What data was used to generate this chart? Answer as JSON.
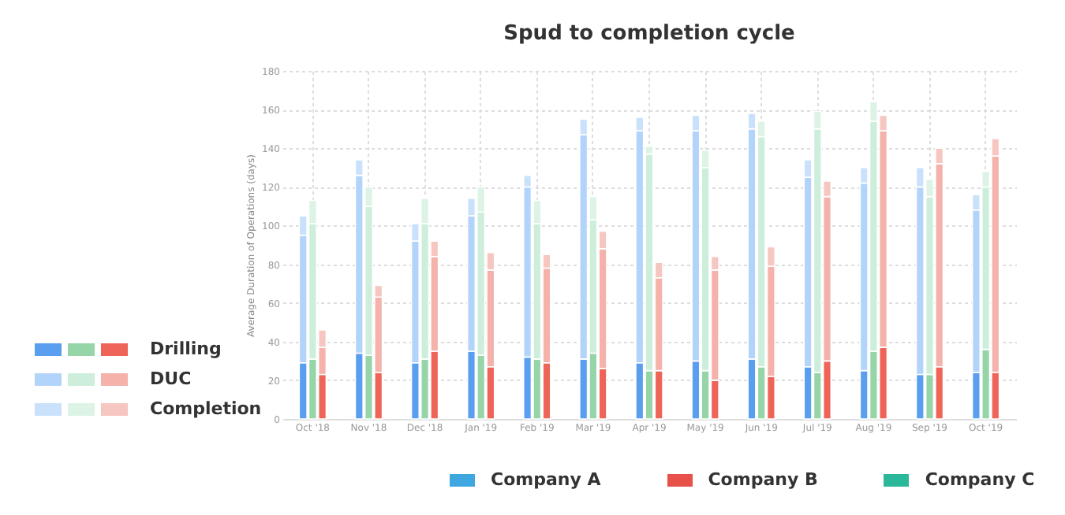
{
  "chart_data": {
    "type": "bar",
    "title": "Spud to completion cycle",
    "ylabel": "Average Duration of Operations (days)",
    "categories": [
      null,
      "Oct '18",
      null,
      null,
      "Nov '18",
      null,
      null,
      "Dec '18",
      null,
      null,
      "Jan '19",
      null,
      null,
      "Feb '19",
      null,
      null,
      "Mar '19",
      null,
      null,
      "Apr '19",
      null,
      null,
      "May '19",
      null,
      null,
      "Jun '19",
      null,
      null,
      "Jul '19",
      null,
      null,
      "Aug '19",
      null,
      null,
      "Sep '19",
      null,
      null,
      "Oct '19",
      null
    ],
    "stacked": true,
    "ylim": [
      0,
      180
    ],
    "yticks": [
      0,
      20,
      40,
      60,
      80,
      100,
      120,
      140,
      160,
      180
    ],
    "grid": true,
    "legend": "left",
    "series": [
      {
        "name": "Drilling",
        "colors": [
          "#5a9ef0",
          "#95d5a8",
          "#ee6458",
          "#5a9ef0",
          "#95d5a8",
          "#ee6458",
          "#5a9ef0",
          "#95d5a8",
          "#ee6458",
          "#5a9ef0",
          "#95d5a8",
          "#ee6458",
          "#5a9ef0",
          "#95d5a8",
          "#ee6458",
          "#5a9ef0",
          "#95d5a8",
          "#ee6458",
          "#5a9ef0",
          "#95d5a8",
          "#ee6458",
          "#5a9ef0",
          "#95d5a8",
          "#ee6458",
          "#5a9ef0",
          "#95d5a8",
          "#ee6458",
          "#5a9ef0",
          "#95d5a8",
          "#ee6458",
          "#5a9ef0",
          "#95d5a8",
          "#ee6458",
          "#5a9ef0",
          "#95d5a8",
          "#ee6458",
          "#5a9ef0",
          "#95d5a8",
          "#ee6458"
        ],
        "values": [
          29,
          31,
          23,
          34,
          33,
          24,
          29,
          31,
          35,
          35,
          33,
          27,
          32,
          31,
          29,
          31,
          34,
          26,
          29,
          25,
          25,
          30,
          25,
          20,
          31,
          27,
          22,
          27,
          24,
          30,
          25,
          35,
          37,
          23,
          23,
          27,
          24,
          36,
          24
        ]
      },
      {
        "name": "DUC",
        "colors": [
          "#b3d4fa",
          "#cdeedb",
          "#f4b2ab",
          "#b3d4fa",
          "#cdeedb",
          "#f4b2ab",
          "#b3d4fa",
          "#cdeedb",
          "#f4b2ab",
          "#b3d4fa",
          "#cdeedb",
          "#f4b2ab",
          "#b3d4fa",
          "#cdeedb",
          "#f4b2ab",
          "#b3d4fa",
          "#cdeedb",
          "#f4b2ab",
          "#b3d4fa",
          "#cdeedb",
          "#f4b2ab",
          "#b3d4fa",
          "#cdeedb",
          "#f4b2ab",
          "#b3d4fa",
          "#cdeedb",
          "#f4b2ab",
          "#b3d4fa",
          "#cdeedb",
          "#f4b2ab",
          "#b3d4fa",
          "#cdeedb",
          "#f4b2ab",
          "#b3d4fa",
          "#cdeedb",
          "#f4b2ab",
          "#b3d4fa",
          "#cdeedb",
          "#f4b2ab"
        ],
        "values": [
          66,
          70,
          14,
          92,
          77,
          39,
          63,
          70,
          49,
          70,
          74,
          50,
          88,
          70,
          49,
          116,
          69,
          62,
          120,
          112,
          48,
          119,
          105,
          57,
          119,
          119,
          57,
          98,
          126,
          85,
          97,
          119,
          112,
          97,
          92,
          105,
          84,
          84,
          112
        ]
      },
      {
        "name": "Completion",
        "colors": [
          "#c9e1fb",
          "#dcf3e5",
          "#f6c6c1",
          "#c9e1fb",
          "#dcf3e5",
          "#f6c6c1",
          "#c9e1fb",
          "#dcf3e5",
          "#f6c6c1",
          "#c9e1fb",
          "#dcf3e5",
          "#f6c6c1",
          "#c9e1fb",
          "#dcf3e5",
          "#f6c6c1",
          "#c9e1fb",
          "#dcf3e5",
          "#f6c6c1",
          "#c9e1fb",
          "#dcf3e5",
          "#f6c6c1",
          "#c9e1fb",
          "#dcf3e5",
          "#f6c6c1",
          "#c9e1fb",
          "#dcf3e5",
          "#f6c6c1",
          "#c9e1fb",
          "#dcf3e5",
          "#f6c6c1",
          "#c9e1fb",
          "#dcf3e5",
          "#f6c6c1",
          "#c9e1fb",
          "#dcf3e5",
          "#f6c6c1",
          "#c9e1fb",
          "#dcf3e5",
          "#f6c6c1"
        ],
        "values": [
          10,
          12,
          9,
          8,
          10,
          6,
          9,
          13,
          8,
          9,
          13,
          9,
          6,
          12,
          7,
          8,
          12,
          9,
          7,
          4,
          8,
          8,
          9,
          7,
          8,
          8,
          10,
          9,
          9,
          8,
          8,
          10,
          8,
          10,
          9,
          8,
          8,
          8,
          9
        ]
      },
      {
        "name": "Company A",
        "color": "#3fa7e0",
        "values": [
          null,
          null,
          null,
          null,
          null,
          null,
          null,
          null,
          null,
          null,
          null,
          null,
          null,
          null,
          null,
          null,
          null,
          null,
          null,
          null,
          null,
          null,
          null,
          null,
          null,
          null,
          null,
          null,
          null,
          null,
          null,
          null,
          null,
          null,
          null,
          null,
          null,
          null,
          null
        ]
      },
      {
        "name": "Company B",
        "color": "#e8514a",
        "values": [
          null,
          null,
          null,
          null,
          null,
          null,
          null,
          null,
          null,
          null,
          null,
          null,
          null,
          null,
          null,
          null,
          null,
          null,
          null,
          null,
          null,
          null,
          null,
          null,
          null,
          null,
          null,
          null,
          null,
          null,
          null,
          null,
          null,
          null,
          null,
          null,
          null,
          null,
          null
        ]
      },
      {
        "name": "Company C",
        "color": "#2bb89a",
        "values": [
          null,
          null,
          null,
          null,
          null,
          null,
          null,
          null,
          null,
          null,
          null,
          null,
          null,
          null,
          null,
          null,
          null,
          null,
          null,
          null,
          null,
          null,
          null,
          null,
          null,
          null,
          null,
          null,
          null,
          null,
          null,
          null,
          null,
          null,
          null,
          null,
          null,
          null,
          null
        ]
      }
    ]
  }
}
